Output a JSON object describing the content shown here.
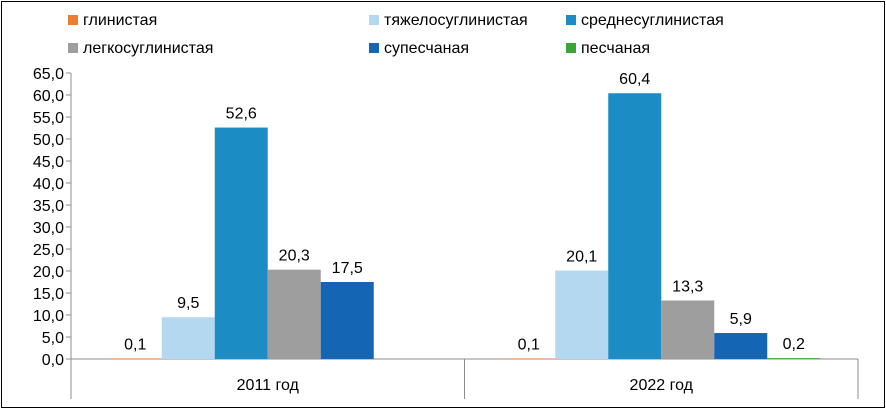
{
  "chart_data": {
    "type": "bar",
    "categories": [
      "2011 год",
      "2022 год"
    ],
    "series": [
      {
        "name": "глинистая",
        "color": "#ED7D31",
        "values": [
          0.1,
          0.1
        ]
      },
      {
        "name": "тяжелосуглинистая",
        "color": "#B4D8F0",
        "values": [
          9.5,
          20.1
        ]
      },
      {
        "name": "среднесуглинистая",
        "color": "#1B8DC4",
        "values": [
          52.6,
          60.4
        ]
      },
      {
        "name": "легкосуглинистая",
        "color": "#9E9E9E",
        "values": [
          20.3,
          13.3
        ]
      },
      {
        "name": "супесчаная",
        "color": "#1565B5",
        "values": [
          17.5,
          5.9
        ]
      },
      {
        "name": "песчаная",
        "color": "#3AA635",
        "values": [
          0,
          0.2
        ]
      }
    ],
    "data_labels": [
      [
        "0,1",
        "9,5",
        "52,6",
        "20,3",
        "17,5",
        ""
      ],
      [
        "0,1",
        "20,1",
        "60,4",
        "13,3",
        "5,9",
        "0,2"
      ]
    ],
    "y_ticks": [
      "0,0",
      "5,0",
      "10,0",
      "15,0",
      "20,0",
      "25,0",
      "30,0",
      "35,0",
      "40,0",
      "45,0",
      "50,0",
      "55,0",
      "60,0",
      "65,0"
    ],
    "ylim": [
      0,
      65
    ],
    "grid": false,
    "legend_position": "top"
  }
}
